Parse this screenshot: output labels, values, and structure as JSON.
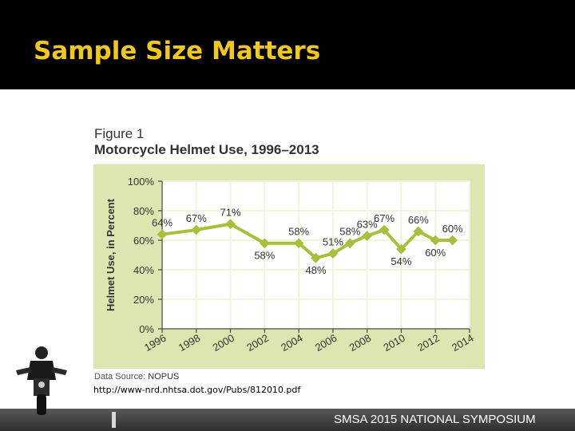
{
  "slide": {
    "title": "Sample Size Matters",
    "footer": "SMSA 2015 NATIONAL SYMPOSIUM",
    "url": "http://www-nrd.nhtsa.dot.gov/Pubs/812010.pdf"
  },
  "figure": {
    "label": "Figure 1",
    "title": "Motorcycle Helmet Use, 1996–2013",
    "source_label": "Data Source:",
    "source_value": "NOPUS"
  },
  "colors": {
    "header_bg": "#000000",
    "title_text": "#f2c81a",
    "panel_bg": "#dde6b0",
    "series": "#a9bf3c",
    "gridline": "#f3f4dc"
  },
  "chart_data": {
    "type": "line",
    "title": "Motorcycle Helmet Use, 1996–2013",
    "xlabel": "",
    "ylabel": "Helmet Use, in Percent",
    "x": [
      1996,
      1998,
      2000,
      2002,
      2004,
      2005,
      2006,
      2007,
      2008,
      2009,
      2010,
      2011,
      2012,
      2013
    ],
    "values": [
      64,
      67,
      71,
      58,
      58,
      48,
      51,
      58,
      63,
      67,
      54,
      66,
      60,
      60
    ],
    "value_labels": [
      "64%",
      "67%",
      "71%",
      "58%",
      "58%",
      "48%",
      "51%",
      "58%",
      "63%",
      "67%",
      "54%",
      "66%",
      "60%",
      "60%"
    ],
    "xticks": [
      "1996",
      "1998",
      "2000",
      "2002",
      "2004",
      "2006",
      "2008",
      "2010",
      "2012",
      "2014"
    ],
    "xlim": [
      1996,
      2014
    ],
    "yticks": [
      "0%",
      "20%",
      "40%",
      "60%",
      "80%",
      "100%"
    ],
    "ylim": [
      0,
      100
    ],
    "grid": true,
    "legend": "none"
  }
}
